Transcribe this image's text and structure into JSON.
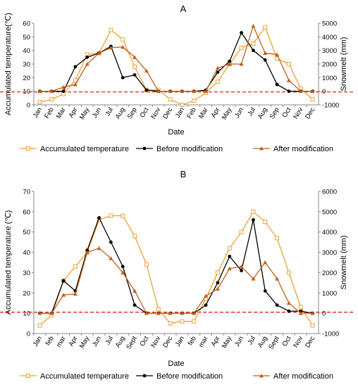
{
  "chart_data": [
    {
      "type": "line",
      "title": "A",
      "xlabel": "Date",
      "ylabel": "Accumulated temperature(℃)",
      "y2label": "Snowmelt (mm)",
      "categories": [
        "Jan",
        "Feb",
        "Mar",
        "Apr",
        "May",
        "Jun",
        "Jul",
        "Aug",
        "Sep",
        "Oct",
        "Nov",
        "Dec",
        "Jan",
        "Feb",
        "Mar",
        "Apr",
        "May",
        "Jun",
        "Jul",
        "Aug",
        "Sep",
        "Oct",
        "Nov",
        "Dec"
      ],
      "ylim": [
        0,
        60
      ],
      "yticks": [
        0,
        10,
        20,
        30,
        40,
        50,
        60
      ],
      "y2lim": [
        -1000,
        5000
      ],
      "y2ticks": [
        -1000,
        0,
        1000,
        2000,
        3000,
        4000,
        5000
      ],
      "reference_line": {
        "axis": "y",
        "value": 9.5,
        "color": "#e0261c"
      },
      "legend_position": "bottom",
      "grid": false,
      "series": [
        {
          "name": "Accumulated temperature",
          "axis": "y",
          "color": "#f0a030",
          "marker": "square-open",
          "values": [
            2,
            4,
            8,
            18,
            37,
            38,
            55,
            48,
            28,
            11,
            11,
            4,
            0,
            3,
            9,
            17,
            30,
            42,
            45,
            57,
            34,
            30,
            12,
            4
          ]
        },
        {
          "name": "Before modification",
          "axis": "y2",
          "color": "#000000",
          "marker": "circle",
          "values": [
            0,
            0,
            0,
            1800,
            2500,
            2800,
            3300,
            1000,
            1200,
            80,
            0,
            0,
            0,
            0,
            80,
            1400,
            2200,
            4300,
            3000,
            2300,
            500,
            0,
            0,
            0
          ]
        },
        {
          "name": "After modification",
          "axis": "y2",
          "color": "#c0601a",
          "marker": "triangle",
          "values": [
            0,
            0,
            300,
            500,
            2000,
            2800,
            3200,
            3250,
            2500,
            1500,
            0,
            0,
            0,
            0,
            0,
            1700,
            2000,
            2000,
            4800,
            2800,
            2700,
            800,
            0,
            0
          ]
        }
      ]
    },
    {
      "type": "line",
      "title": "B",
      "xlabel": "Date",
      "ylabel": "Accumulated temperature (℃)",
      "y2label": "Snowmelt (mm)",
      "categories": [
        "Jan",
        "feb",
        "mar",
        "Apr",
        "May",
        "Jun",
        "Jul",
        "Aug",
        "Sept",
        "Oct",
        "Nov",
        "Dec",
        "Jan",
        "feb",
        "mar",
        "Apr",
        "May",
        "Jun",
        "Jul",
        "Aug",
        "Sept",
        "Oct",
        "Nov",
        "Dec"
      ],
      "ylim": [
        0,
        70
      ],
      "yticks": [
        0,
        10,
        20,
        30,
        40,
        50,
        60,
        70
      ],
      "y2lim": [
        -1000,
        6000
      ],
      "y2ticks": [
        -1000,
        0,
        1000,
        2000,
        3000,
        4000,
        5000,
        6000
      ],
      "reference_line": {
        "axis": "y",
        "value": 10.5,
        "color": "#e0261c"
      },
      "legend_position": "bottom",
      "grid": false,
      "series": [
        {
          "name": "Accumulated temperature",
          "axis": "y",
          "color": "#f0a030",
          "marker": "square-open",
          "values": [
            4,
            9,
            26,
            33,
            40,
            56,
            58,
            58,
            48,
            34,
            12,
            5,
            6,
            6,
            17,
            30,
            42,
            50,
            60,
            55,
            47,
            30,
            13,
            4
          ]
        },
        {
          "name": "Before modification",
          "axis": "y2",
          "color": "#000000",
          "marker": "circle",
          "values": [
            0,
            0,
            1600,
            1100,
            3100,
            4700,
            3500,
            2300,
            400,
            0,
            0,
            0,
            0,
            0,
            400,
            1500,
            2800,
            2100,
            4600,
            1100,
            400,
            100,
            100,
            0
          ]
        },
        {
          "name": "After modification",
          "axis": "y2",
          "color": "#c0601a",
          "marker": "triangle",
          "values": [
            0,
            0,
            900,
            950,
            3000,
            3200,
            2700,
            2000,
            1100,
            0,
            0,
            0,
            0,
            0,
            850,
            1200,
            2200,
            2300,
            1700,
            2500,
            1700,
            500,
            0,
            0
          ]
        }
      ]
    }
  ]
}
